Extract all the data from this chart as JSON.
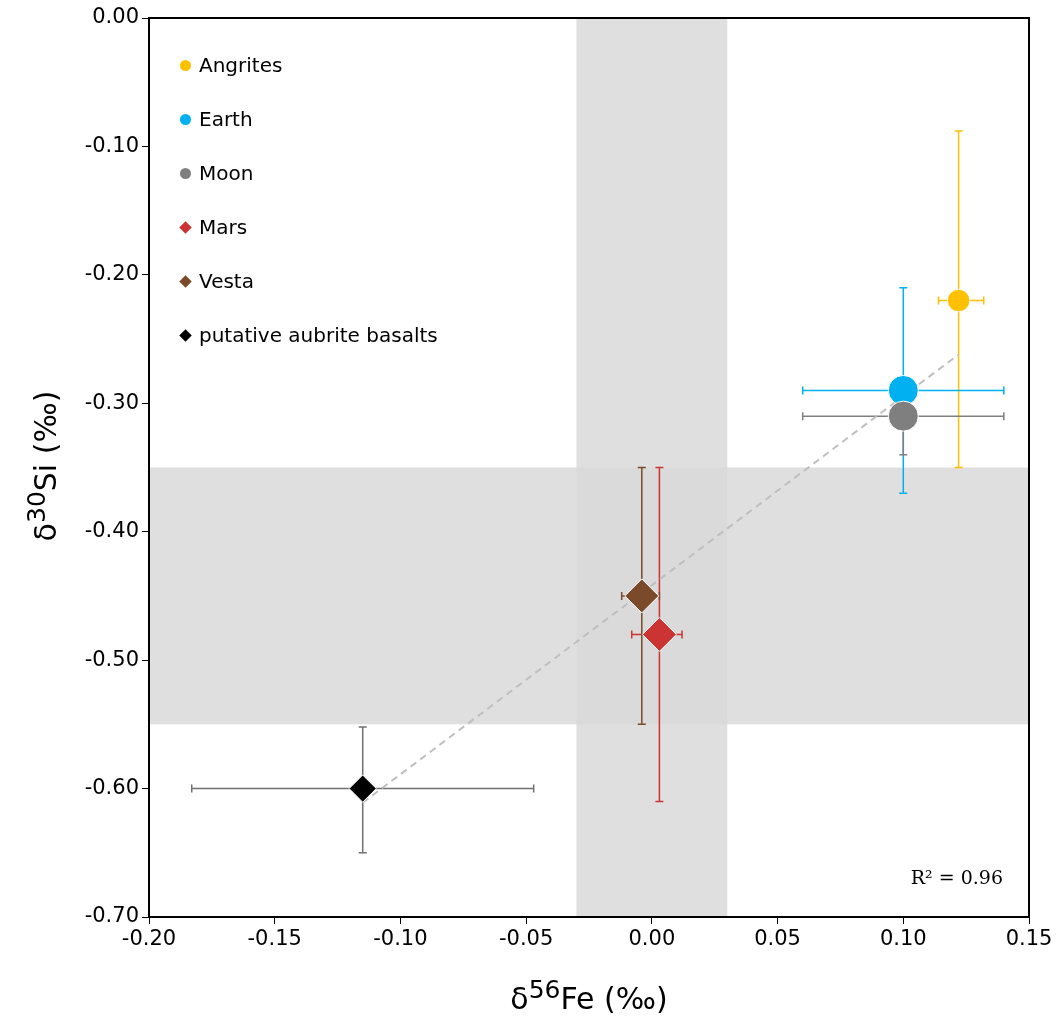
{
  "chart_data": {
    "type": "scatter",
    "xlabel": "δ$^{56}$Fe (‰)",
    "ylabel": "δ$^{30}$Si (‰)",
    "xlim": [
      -0.2,
      0.15
    ],
    "ylim": [
      -0.7,
      0
    ],
    "xticks": [
      {
        "value": -0.2,
        "label": "-0.20"
      },
      {
        "value": -0.15,
        "label": "-0.15"
      },
      {
        "value": -0.1,
        "label": "-0.10"
      },
      {
        "value": -0.05,
        "label": "-0.05"
      },
      {
        "value": 0,
        "label": "0.00"
      },
      {
        "value": 0.05,
        "label": "0.05"
      },
      {
        "value": 0.1,
        "label": "0.10"
      },
      {
        "value": 0.15,
        "label": "0.15"
      }
    ],
    "yticks": [
      {
        "value": 0,
        "label": "0.00"
      },
      {
        "value": -0.1,
        "label": "-0.10"
      },
      {
        "value": -0.2,
        "label": "-0.20"
      },
      {
        "value": -0.3,
        "label": "-0.30"
      },
      {
        "value": -0.4,
        "label": "-0.40"
      },
      {
        "value": -0.5,
        "label": "-0.50"
      },
      {
        "value": -0.6,
        "label": "-0.60"
      },
      {
        "value": -0.7,
        "label": "-0.70"
      }
    ],
    "grid": false,
    "legend": "top left",
    "bands": [
      {
        "axis": "x",
        "from": -0.03,
        "to": 0.03,
        "color": "#d9d9d9"
      },
      {
        "axis": "y",
        "from": -0.55,
        "to": -0.35,
        "color": "#d9d9d9"
      }
    ],
    "series": [
      {
        "type": "line",
        "x": [
          -0.115,
          0.122
        ],
        "values": [
          -0.611,
          -0.262
        ],
        "color": "#bfbfbf",
        "line_style": "dashed",
        "marker": "none"
      },
      {
        "name": "Angrites",
        "color": "#ffc000",
        "marker": "circle",
        "x": [
          0.122
        ],
        "values": [
          -0.22
        ],
        "errors": [
          [
            -0.35,
            -0.088
          ]
        ],
        "xerrors": [
          [
            0.114,
            0.132
          ]
        ]
      },
      {
        "name": "Earth",
        "color": "#00b0f0",
        "marker": "circle",
        "x": [
          0.1
        ],
        "values": [
          -0.29
        ],
        "errors": [
          [
            -0.37,
            -0.21
          ]
        ],
        "xerrors": [
          [
            0.06,
            0.14
          ]
        ]
      },
      {
        "name": "Moon",
        "color": "#7f7f7f",
        "marker": "circle",
        "x": [
          0.1
        ],
        "values": [
          -0.31
        ],
        "errors": [
          [
            -0.34,
            -0.28
          ]
        ],
        "xerrors": [
          [
            0.06,
            0.14
          ]
        ]
      },
      {
        "name": "Mars",
        "color": "#cc3333",
        "marker": "diamond",
        "x": [
          0.003
        ],
        "values": [
          -0.48
        ],
        "errors": [
          [
            -0.61,
            -0.35
          ]
        ],
        "xerrors": [
          [
            -0.008,
            0.012
          ]
        ]
      },
      {
        "name": "Vesta",
        "color": "#7b4a2a",
        "marker": "diamond",
        "x": [
          -0.004
        ],
        "values": [
          -0.45
        ],
        "errors": [
          [
            -0.55,
            -0.35
          ]
        ],
        "xerrors": [
          [
            -0.012,
            0.003
          ]
        ]
      },
      {
        "name": "putative aubrite basalts",
        "color": "#000000",
        "marker": "diamond",
        "x": [
          -0.115
        ],
        "values": [
          -0.6
        ],
        "errors": [
          [
            -0.65,
            -0.552
          ]
        ],
        "xerrors": [
          [
            -0.183,
            -0.047
          ]
        ]
      }
    ],
    "annotations": [
      "R² = 0.96"
    ]
  }
}
